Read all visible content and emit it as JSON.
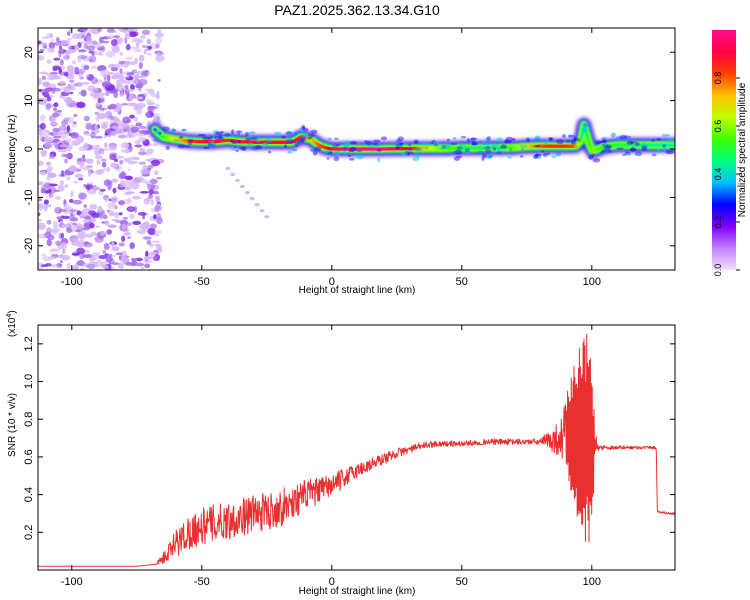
{
  "title": "PAZ1.2025.362.13.34.G10",
  "chart_data": [
    {
      "type": "heatmap",
      "name": "spectrogram",
      "xlabel": "Height of straight line (km)",
      "ylabel": "Frequency (Hz)",
      "xlim": [
        -113,
        132
      ],
      "ylim": [
        -25,
        25
      ],
      "xticks": [
        -100,
        -50,
        0,
        50,
        100
      ],
      "yticks": [
        -20,
        -10,
        0,
        10,
        20
      ],
      "noise_region_x": [
        -113,
        -68
      ],
      "ridge": {
        "x": [
          -68,
          -65,
          -60,
          -55,
          -50,
          -45,
          -40,
          -35,
          -30,
          -25,
          -20,
          -15,
          -12,
          -8,
          -5,
          -2,
          0,
          10,
          20,
          30,
          40,
          50,
          60,
          70,
          75,
          80,
          85,
          90,
          94,
          96,
          97,
          98,
          100,
          105,
          110,
          120,
          132
        ],
        "freq": [
          4,
          2.5,
          2,
          1.6,
          1.5,
          1.5,
          1.8,
          1.5,
          1.4,
          1.4,
          1.4,
          1.4,
          2.5,
          2.0,
          0.8,
          0.2,
          0.0,
          0.0,
          0.0,
          0.1,
          0.1,
          0.2,
          0.2,
          0.3,
          0.5,
          0.6,
          0.6,
          0.6,
          0.6,
          2.0,
          5.0,
          3.0,
          -0.5,
          0.5,
          0.8,
          0.8,
          0.8
        ],
        "peak_amplitude": [
          0.3,
          0.5,
          0.7,
          0.8,
          0.9,
          0.9,
          0.85,
          0.9,
          0.9,
          0.9,
          0.9,
          0.95,
          0.85,
          0.7,
          0.8,
          0.85,
          0.95,
          1.0,
          1.0,
          0.9,
          0.6,
          0.5,
          0.45,
          0.55,
          0.7,
          0.8,
          0.85,
          0.85,
          0.8,
          0.5,
          0.4,
          0.45,
          0.6,
          0.5,
          0.5,
          0.45,
          0.45
        ]
      },
      "faint_trace": {
        "x_start": -40,
        "x_end": -25,
        "freq_start": -4,
        "freq_end": -14
      },
      "colorbar": {
        "label": "Normalized spectral amplitude",
        "range": [
          0.0,
          1.0
        ],
        "ticks": [
          "0.0",
          "0.2",
          "0.4",
          "0.6",
          "0.8"
        ],
        "tick_values": [
          0.0,
          0.2,
          0.4,
          0.6,
          0.8
        ],
        "colors": [
          "#f0e0ff",
          "#c080ff",
          "#8000ff",
          "#0000ff",
          "#00c0ff",
          "#00ff80",
          "#40ff00",
          "#c0ff00",
          "#ffc000",
          "#ff4000",
          "#ff0040",
          "#ff1090"
        ]
      }
    },
    {
      "type": "line",
      "name": "snr",
      "xlabel": "Height of straight line (km)",
      "ylabel": "SNR (10 * v/v)",
      "yscale_label": "(x10",
      "yscale_exponent": "4",
      "yscale_suffix": ")",
      "xlim": [
        -113,
        132
      ],
      "ylim": [
        0,
        1.3
      ],
      "xticks": [
        -100,
        -50,
        0,
        50,
        100
      ],
      "yticks": [
        0.2,
        0.4,
        0.6,
        0.8,
        1.0,
        1.2
      ],
      "ytick_labels": [
        "0.2",
        "0.4",
        "0.6",
        "0.8",
        "1.0",
        "1.2"
      ],
      "color": "#e83030",
      "envelope": {
        "x": [
          -113,
          -75,
          -68,
          -65,
          -62,
          -60,
          -55,
          -50,
          -45,
          -40,
          -35,
          -30,
          -25,
          -20,
          -15,
          -10,
          -5,
          0,
          5,
          10,
          15,
          20,
          25,
          30,
          35,
          40,
          50,
          60,
          70,
          80,
          85,
          88,
          90,
          92,
          94,
          96,
          98,
          100,
          102,
          110,
          120,
          124.8,
          125.2,
          130,
          132
        ],
        "y": [
          0.02,
          0.02,
          0.03,
          0.06,
          0.1,
          0.14,
          0.2,
          0.23,
          0.25,
          0.26,
          0.28,
          0.3,
          0.31,
          0.33,
          0.36,
          0.4,
          0.42,
          0.45,
          0.49,
          0.53,
          0.56,
          0.59,
          0.62,
          0.64,
          0.66,
          0.67,
          0.67,
          0.68,
          0.68,
          0.68,
          0.69,
          0.7,
          0.72,
          0.72,
          0.72,
          0.7,
          0.68,
          0.66,
          0.65,
          0.65,
          0.65,
          0.65,
          0.31,
          0.3,
          0.3
        ]
      },
      "noise_amplitude": {
        "x": [
          -113,
          -68,
          -60,
          -50,
          -40,
          -30,
          -20,
          -10,
          0,
          10,
          20,
          30,
          40,
          80,
          88,
          92,
          95,
          97,
          99,
          101,
          102,
          110,
          132
        ],
        "amp": [
          0.0,
          0.0,
          0.08,
          0.1,
          0.1,
          0.1,
          0.1,
          0.08,
          0.06,
          0.04,
          0.03,
          0.02,
          0.015,
          0.015,
          0.1,
          0.3,
          0.5,
          0.6,
          0.55,
          0.2,
          0.015,
          0.01,
          0.005
        ]
      }
    }
  ]
}
